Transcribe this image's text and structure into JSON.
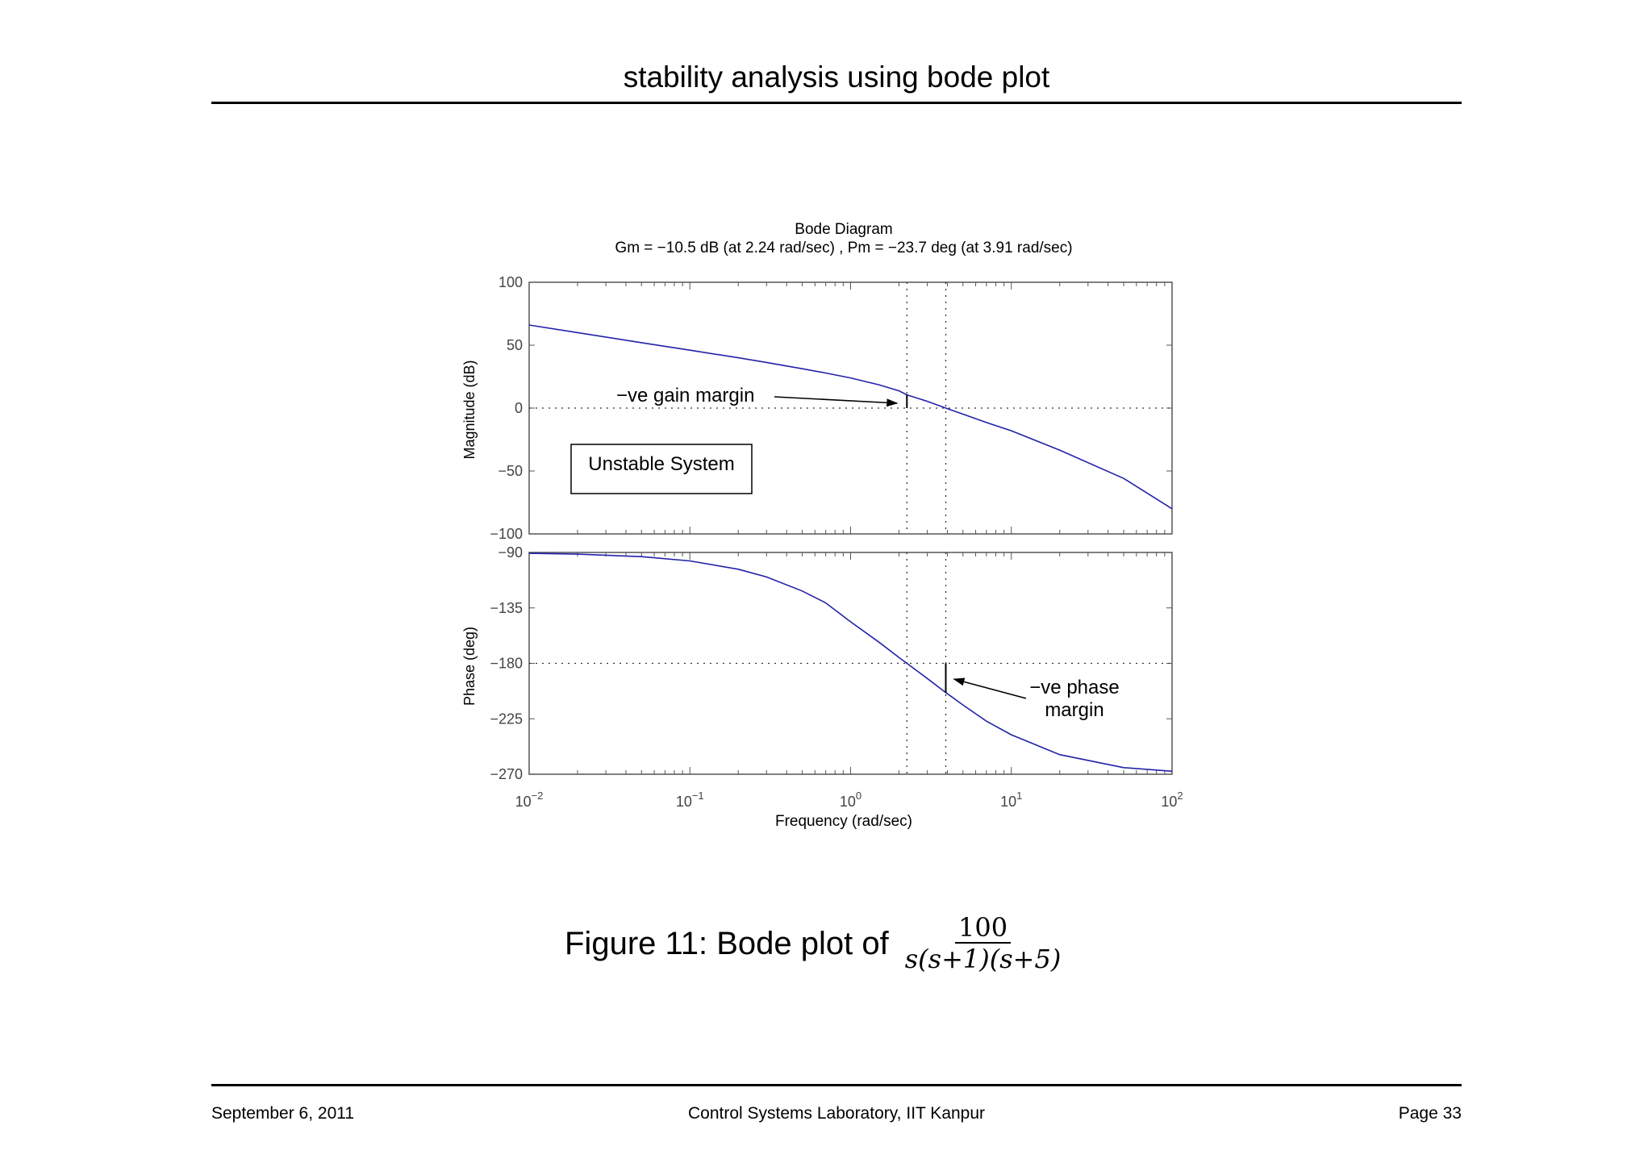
{
  "page": {
    "title": "stability analysis using bode plot",
    "footer_left": "September 6, 2011",
    "footer_center": "Control Systems Laboratory, IIT Kanpur",
    "footer_right": "Page 33"
  },
  "caption": {
    "text": "Figure 11: Bode plot of",
    "numerator": "100",
    "denominator": "s(s+1)(s+5)"
  },
  "colors": {
    "curve": "#2222aa",
    "axis": "#555555",
    "text": "#000000"
  },
  "chart_data": {
    "type": "line",
    "title": "Bode Diagram",
    "subtitle": "Gm = −10.5 dB (at 2.24 rad/sec) ,  Pm = −23.7 deg (at 3.91 rad/sec)",
    "xlabel": "Frequency  (rad/sec)",
    "xscale": "log",
    "xlim": [
      0.01,
      100
    ],
    "x_ticks": [
      {
        "base": "10",
        "exp": "−2",
        "value": 0.01
      },
      {
        "base": "10",
        "exp": "−1",
        "value": 0.1
      },
      {
        "base": "10",
        "exp": "0",
        "value": 1
      },
      {
        "base": "10",
        "exp": "1",
        "value": 10
      },
      {
        "base": "10",
        "exp": "2",
        "value": 100
      }
    ],
    "gain_crossover_freq": 3.91,
    "phase_crossover_freq": 2.24,
    "panels": [
      {
        "name": "magnitude",
        "ylabel": "Magnitude (dB)",
        "ylim": [
          -100,
          100
        ],
        "y_ticks": [
          {
            "label": "100",
            "value": 100
          },
          {
            "label": "50",
            "value": 50
          },
          {
            "label": "0",
            "value": 0
          },
          {
            "label": "−50",
            "value": -50
          },
          {
            "label": "−100",
            "value": -100
          }
        ],
        "reference_line": 0,
        "series": [
          {
            "x": [
              0.01,
              0.02,
              0.05,
              0.1,
              0.2,
              0.3,
              0.5,
              0.7,
              1,
              1.5,
              2,
              2.24,
              3,
              3.91,
              5,
              7,
              10,
              20,
              50,
              100
            ],
            "y": [
              66,
              60,
              52,
              46,
              40,
              36.3,
              31.3,
              27.9,
              24.0,
              18.5,
              13.7,
              10.5,
              5.4,
              0,
              -4.8,
              -11.5,
              -18.0,
              -33.4,
              -55.9,
              -80.0
            ]
          }
        ],
        "annotations": [
          {
            "text": "−ve gain margin",
            "type": "arrow"
          },
          {
            "text": "Unstable System",
            "type": "box"
          }
        ]
      },
      {
        "name": "phase",
        "ylabel": "Phase (deg)",
        "ylim": [
          -270,
          -90
        ],
        "y_ticks": [
          {
            "label": "−90",
            "value": -90
          },
          {
            "label": "−135",
            "value": -135
          },
          {
            "label": "−180",
            "value": -180
          },
          {
            "label": "−225",
            "value": -225
          },
          {
            "label": "−270",
            "value": -270
          }
        ],
        "reference_line": -180,
        "series": [
          {
            "x": [
              0.01,
              0.02,
              0.05,
              0.1,
              0.2,
              0.3,
              0.5,
              0.7,
              1,
              1.5,
              2,
              2.24,
              3,
              3.91,
              5,
              7,
              10,
              20,
              50,
              100
            ],
            "y": [
              -90.7,
              -91.4,
              -93.4,
              -96.9,
              -103.6,
              -109.9,
              -121.3,
              -130.9,
              -146.3,
              -162.8,
              -175.3,
              -180,
              -192.3,
              -203.7,
              -213.8,
              -226.9,
              -238.0,
              -254.1,
              -264.6,
              -267.6
            ]
          }
        ],
        "annotations": [
          {
            "text": "−ve phase",
            "type": "arrow"
          },
          {
            "text": "margin",
            "type": "arrow"
          }
        ]
      }
    ]
  }
}
